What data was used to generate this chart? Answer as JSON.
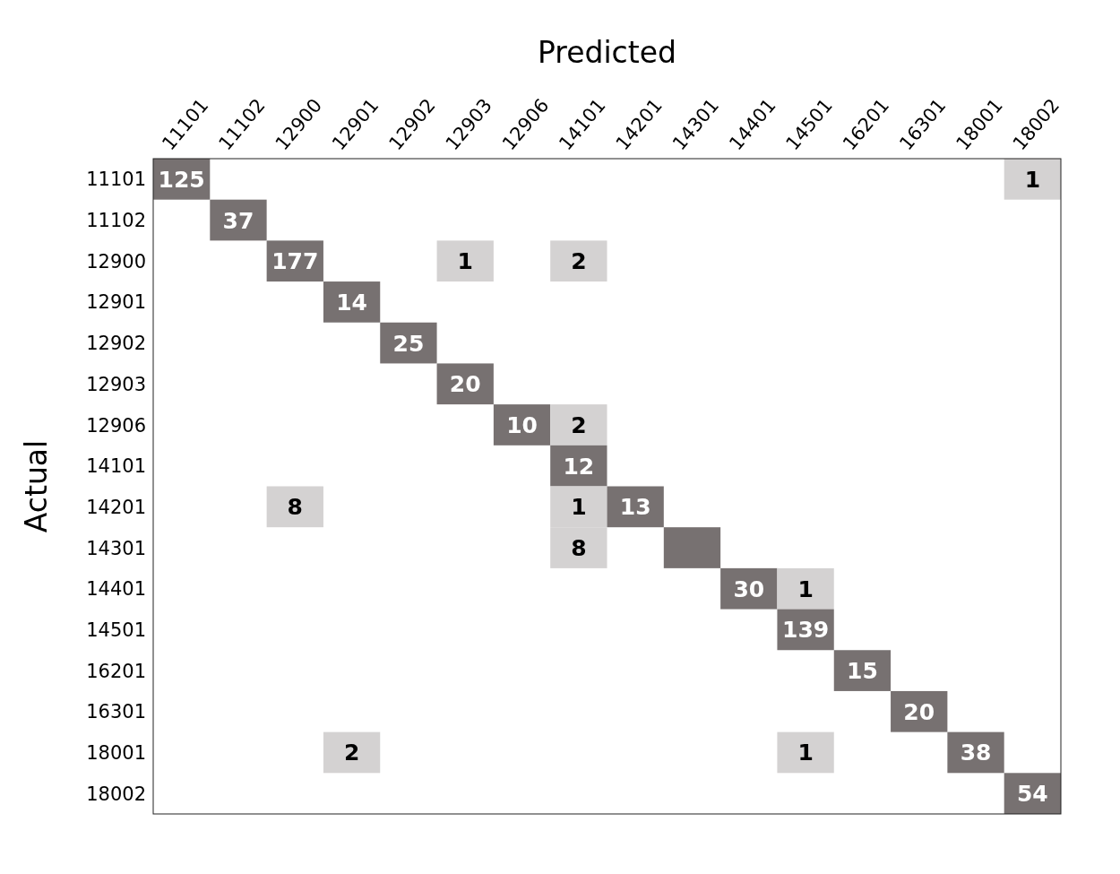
{
  "chart_data": {
    "type": "heatmap",
    "xlabel": "Predicted",
    "ylabel": "Actual",
    "categories": [
      "11101",
      "11102",
      "12900",
      "12901",
      "12902",
      "12903",
      "12906",
      "14101",
      "14201",
      "14301",
      "14401",
      "14501",
      "16201",
      "16301",
      "18001",
      "18002"
    ],
    "y_categories": [
      "11101",
      "11102",
      "12900",
      "12901",
      "12902",
      "12903",
      "12906",
      "14101",
      "14201",
      "14301",
      "14401",
      "14501",
      "16201",
      "16301",
      "18001",
      "18002"
    ],
    "cells": [
      [
        125,
        null,
        null,
        null,
        null,
        null,
        null,
        null,
        null,
        null,
        null,
        null,
        null,
        null,
        null,
        1
      ],
      [
        null,
        37,
        null,
        null,
        null,
        null,
        null,
        null,
        null,
        null,
        null,
        null,
        null,
        null,
        null,
        null
      ],
      [
        null,
        null,
        177,
        null,
        null,
        1,
        null,
        2,
        null,
        null,
        null,
        null,
        null,
        null,
        null,
        null
      ],
      [
        null,
        null,
        null,
        14,
        null,
        null,
        null,
        null,
        null,
        null,
        null,
        null,
        null,
        null,
        null,
        null
      ],
      [
        null,
        null,
        null,
        null,
        25,
        null,
        null,
        null,
        null,
        null,
        null,
        null,
        null,
        null,
        null,
        null
      ],
      [
        null,
        null,
        null,
        null,
        null,
        20,
        null,
        null,
        null,
        null,
        null,
        null,
        null,
        null,
        null,
        null
      ],
      [
        null,
        null,
        null,
        null,
        null,
        null,
        10,
        2,
        null,
        null,
        null,
        null,
        null,
        null,
        null,
        null
      ],
      [
        null,
        null,
        null,
        null,
        null,
        null,
        null,
        12,
        null,
        null,
        null,
        null,
        null,
        null,
        null,
        null
      ],
      [
        null,
        null,
        8,
        null,
        null,
        null,
        null,
        1,
        13,
        null,
        null,
        null,
        null,
        null,
        null,
        null
      ],
      [
        null,
        null,
        null,
        null,
        null,
        null,
        null,
        8,
        null,
        null,
        null,
        null,
        null,
        null,
        null,
        null
      ],
      [
        null,
        null,
        null,
        null,
        null,
        null,
        null,
        null,
        null,
        null,
        30,
        1,
        null,
        null,
        null,
        null
      ],
      [
        null,
        null,
        null,
        null,
        null,
        null,
        null,
        null,
        null,
        null,
        null,
        139,
        null,
        null,
        null,
        null
      ],
      [
        null,
        null,
        null,
        null,
        null,
        null,
        null,
        null,
        null,
        null,
        null,
        null,
        15,
        null,
        null,
        null
      ],
      [
        null,
        null,
        null,
        null,
        null,
        null,
        null,
        null,
        null,
        null,
        null,
        null,
        null,
        20,
        null,
        null
      ],
      [
        null,
        null,
        null,
        2,
        null,
        null,
        null,
        null,
        null,
        null,
        null,
        1,
        null,
        null,
        38,
        null
      ],
      [
        null,
        null,
        null,
        null,
        null,
        null,
        null,
        null,
        null,
        null,
        null,
        null,
        null,
        null,
        null,
        54
      ]
    ],
    "data_labels": true
  }
}
